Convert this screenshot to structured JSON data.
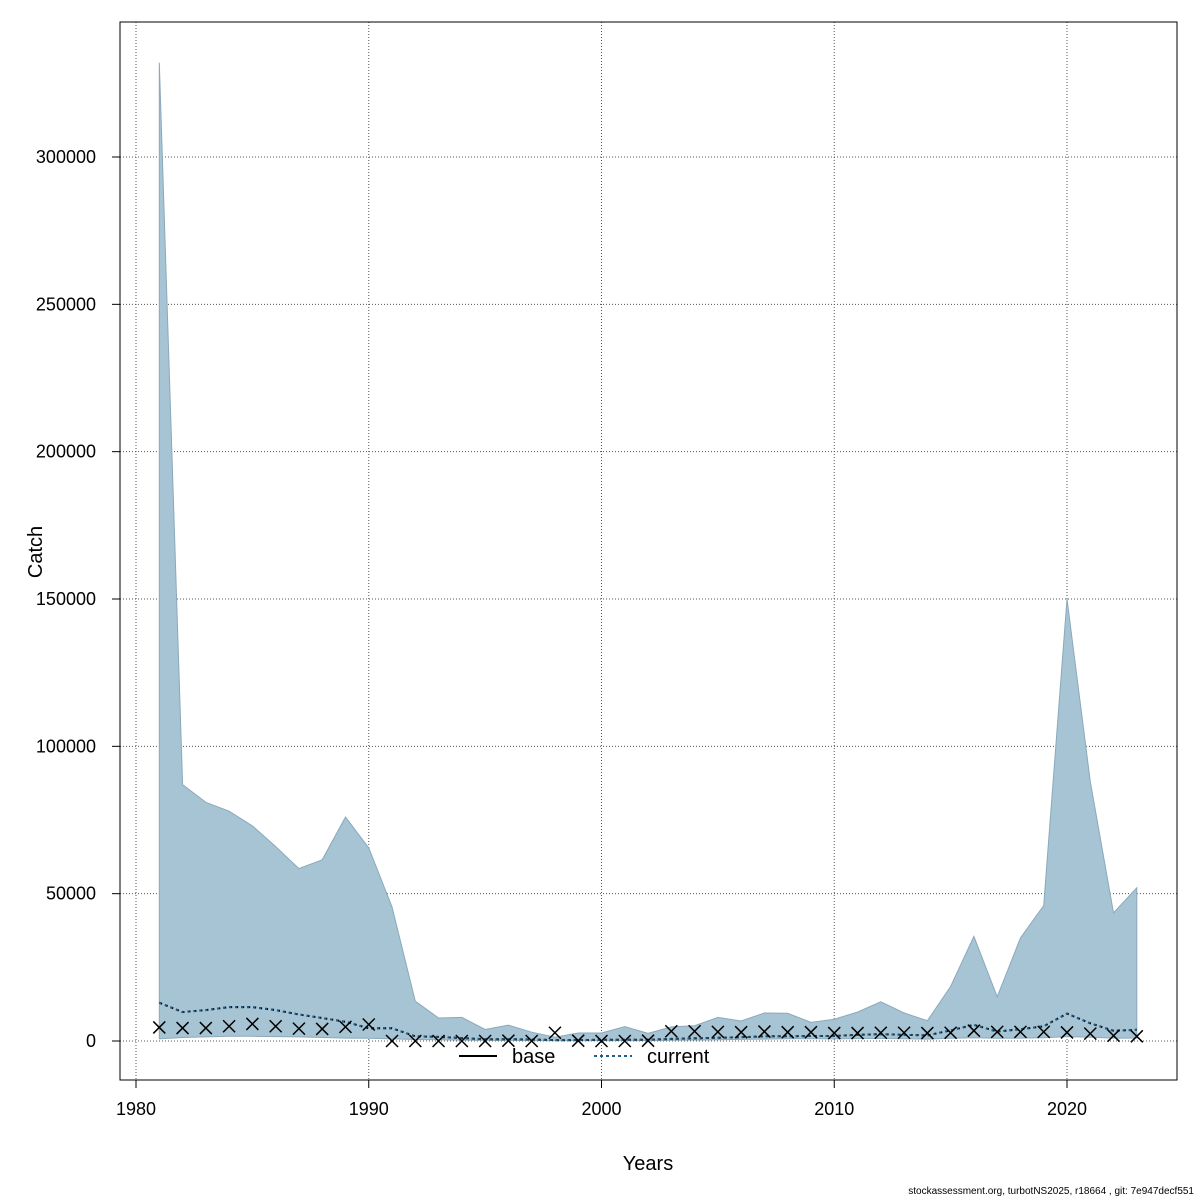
{
  "footer": "stockassessment.org, turbotNS2025, r18664 , git: 7e947decf551",
  "chart_data": {
    "type": "area",
    "title": "",
    "xlabel": "Years",
    "ylabel": "Catch",
    "xlim": [
      1980,
      2023
    ],
    "ylim": [
      0,
      330000
    ],
    "x_ticks": [
      1980,
      1990,
      2000,
      2010,
      2020
    ],
    "y_ticks": [
      0,
      50000,
      100000,
      150000,
      200000,
      250000,
      300000
    ],
    "grid": true,
    "legend": {
      "position": "bottom-center",
      "entries": [
        "base",
        "current"
      ]
    },
    "colors": {
      "band": "#a7c4d4",
      "band_edge": "#8aa9ba",
      "base": "#000000",
      "current": "#1f5f8b",
      "grid": "#555555"
    },
    "years": [
      1981,
      1982,
      1983,
      1984,
      1985,
      1986,
      1987,
      1988,
      1989,
      1990,
      1991,
      1992,
      1993,
      1994,
      1995,
      1996,
      1997,
      1998,
      1999,
      2000,
      2001,
      2002,
      2003,
      2004,
      2005,
      2006,
      2007,
      2008,
      2009,
      2010,
      2011,
      2012,
      2013,
      2014,
      2015,
      2016,
      2017,
      2018,
      2019,
      2020,
      2021,
      2022,
      2023
    ],
    "upper": [
      332000,
      87000,
      81000,
      78000,
      73000,
      66000,
      58500,
      61500,
      76000,
      65500,
      45500,
      13500,
      7800,
      8000,
      3900,
      5400,
      3000,
      1300,
      2700,
      2700,
      4900,
      2600,
      4800,
      5200,
      8000,
      6800,
      9500,
      9400,
      6300,
      7400,
      9800,
      13300,
      9500,
      6900,
      18500,
      35500,
      15000,
      35000,
      46000,
      150000,
      88000,
      43500,
      52000
    ],
    "lower": [
      700,
      1200,
      1400,
      1600,
      1600,
      1500,
      1400,
      1200,
      1000,
      900,
      700,
      500,
      400,
      300,
      200,
      200,
      150,
      150,
      150,
      150,
      150,
      150,
      250,
      350,
      450,
      550,
      650,
      750,
      750,
      700,
      800,
      850,
      750,
      650,
      900,
      1100,
      900,
      1000,
      1100,
      1500,
      1300,
      1000,
      1000
    ],
    "series": [
      {
        "name": "base",
        "values": [
          13000,
          9800,
          10500,
          11500,
          11500,
          10500,
          9000,
          7800,
          6500,
          4300,
          4300,
          1600,
          1400,
          1000,
          600,
          600,
          500,
          300,
          300,
          400,
          400,
          400,
          700,
          900,
          1100,
          1300,
          1600,
          1600,
          1700,
          1700,
          2100,
          2300,
          2100,
          1900,
          3600,
          5500,
          3200,
          4000,
          5000,
          9300,
          6000,
          3500,
          3800
        ]
      },
      {
        "name": "current",
        "values": [
          13000,
          9800,
          10500,
          11500,
          11500,
          10500,
          9000,
          7800,
          6500,
          4300,
          4300,
          1600,
          1400,
          1000,
          600,
          600,
          500,
          300,
          300,
          400,
          400,
          400,
          700,
          900,
          1100,
          1300,
          1600,
          1600,
          1700,
          1700,
          2100,
          2300,
          2100,
          1900,
          3600,
          5500,
          3200,
          4000,
          5000,
          9300,
          6000,
          3500,
          3800
        ]
      }
    ],
    "observed": [
      4600,
      4400,
      4400,
      5000,
      5800,
      5000,
      4200,
      4100,
      4800,
      5600,
      0,
      0,
      0,
      0,
      0,
      100,
      0,
      2800,
      100,
      0,
      0,
      100,
      3300,
      3300,
      3100,
      3000,
      3200,
      3000,
      3000,
      2700,
      2700,
      2800,
      2800,
      2700,
      2800,
      3500,
      3100,
      3100,
      3100,
      2900,
      2500,
      1800,
      1600
    ]
  }
}
